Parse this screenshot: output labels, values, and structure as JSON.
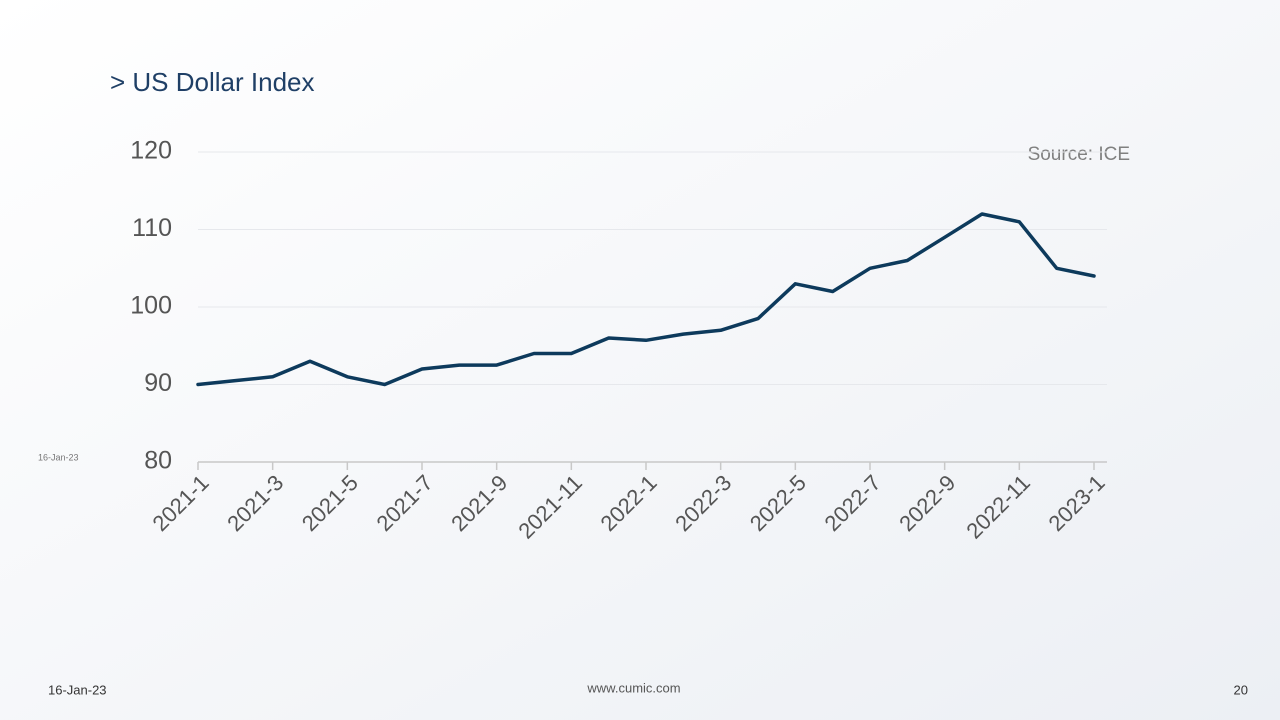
{
  "chart_data": {
    "type": "line",
    "title": "> US Dollar Index",
    "annotation": "Source: ICE",
    "x": [
      "2021-1",
      "2021-2",
      "2021-3",
      "2021-4",
      "2021-5",
      "2021-6",
      "2021-7",
      "2021-8",
      "2021-9",
      "2021-10",
      "2021-11",
      "2021-12",
      "2022-1",
      "2022-2",
      "2022-3",
      "2022-4",
      "2022-5",
      "2022-6",
      "2022-7",
      "2022-8",
      "2022-9",
      "2022-10",
      "2022-11",
      "2022-12",
      "2023-1"
    ],
    "series": [
      {
        "name": "US Dollar Index",
        "color": "#0d3a5c",
        "values": [
          90,
          90.5,
          91,
          93,
          91,
          90,
          92,
          92.5,
          92.5,
          94,
          94,
          96,
          95.7,
          96.5,
          97,
          98.5,
          103,
          102,
          105,
          106,
          109,
          112,
          111,
          105,
          104
        ]
      }
    ],
    "xticks": [
      "2021-1",
      "2021-3",
      "2021-5",
      "2021-7",
      "2021-9",
      "2021-11",
      "2022-1",
      "2022-3",
      "2022-5",
      "2022-7",
      "2022-9",
      "2022-11",
      "2023-1"
    ],
    "ylim": [
      80,
      120
    ],
    "yticks": [
      80,
      90,
      100,
      110,
      120
    ],
    "grid": true
  },
  "slide": {
    "side_date": "16-Jan-23",
    "footer_date": "16-Jan-23",
    "website": "www.cumic.com",
    "page_number": "20"
  }
}
